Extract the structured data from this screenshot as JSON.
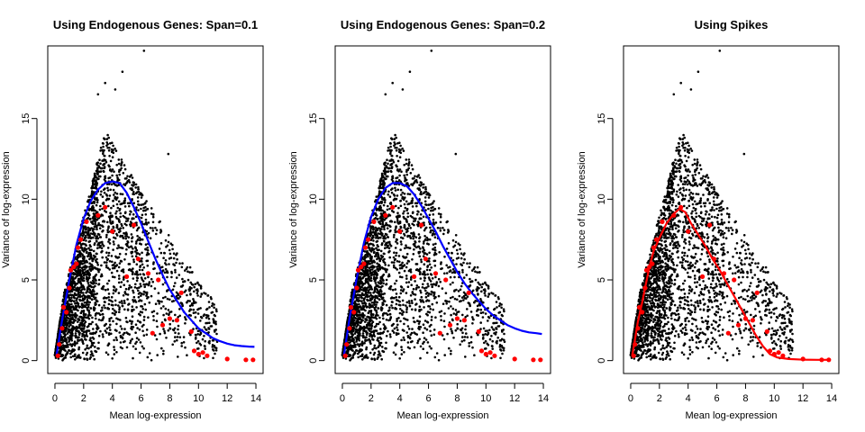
{
  "colors": {
    "points": "#000000",
    "spikes": "#ff0000",
    "fit_blue": "#0000ff",
    "fit_red": "#ff0000"
  },
  "chart_data": [
    {
      "type": "scatter",
      "title": "Using Endogenous Genes: Span=0.1",
      "xlabel": "Mean log-expression",
      "ylabel": "Variance of log-expression",
      "xlim": [
        -0.5,
        14.5
      ],
      "ylim": [
        -0.8,
        19.5
      ],
      "xticks": [
        0,
        2,
        4,
        6,
        8,
        10,
        12,
        14
      ],
      "yticks": [
        0,
        5,
        10,
        15
      ],
      "grid": false,
      "fit_color": "#0000ff",
      "fit": [
        [
          0.1,
          0.3
        ],
        [
          0.5,
          2.5
        ],
        [
          1.0,
          5.0
        ],
        [
          1.5,
          7.2
        ],
        [
          2.0,
          8.8
        ],
        [
          2.5,
          9.9
        ],
        [
          3.0,
          10.6
        ],
        [
          3.5,
          11.0
        ],
        [
          4.0,
          11.1
        ],
        [
          4.5,
          11.0
        ],
        [
          5.0,
          10.4
        ],
        [
          5.5,
          9.5
        ],
        [
          6.0,
          8.5
        ],
        [
          6.5,
          7.4
        ],
        [
          7.0,
          6.3
        ],
        [
          7.5,
          5.3
        ],
        [
          8.0,
          4.4
        ],
        [
          8.5,
          3.7
        ],
        [
          9.0,
          3.0
        ],
        [
          9.5,
          2.5
        ],
        [
          10.0,
          2.0
        ],
        [
          10.5,
          1.7
        ],
        [
          11.0,
          1.4
        ],
        [
          11.5,
          1.2
        ],
        [
          12.0,
          1.05
        ],
        [
          12.5,
          0.95
        ],
        [
          13.0,
          0.9
        ],
        [
          13.5,
          0.87
        ],
        [
          13.9,
          0.85
        ]
      ],
      "spikes": [
        [
          0.2,
          0.3
        ],
        [
          0.3,
          1.0
        ],
        [
          0.5,
          2.0
        ],
        [
          0.6,
          3.3
        ],
        [
          0.8,
          3.0
        ],
        [
          1.0,
          4.5
        ],
        [
          1.1,
          5.6
        ],
        [
          1.3,
          5.8
        ],
        [
          1.5,
          6.0
        ],
        [
          1.6,
          7.0
        ],
        [
          1.8,
          7.5
        ],
        [
          2.2,
          8.6
        ],
        [
          3.0,
          9.0
        ],
        [
          3.5,
          9.5
        ],
        [
          4.0,
          8.0
        ],
        [
          5.0,
          5.2
        ],
        [
          5.5,
          8.4
        ],
        [
          5.8,
          6.3
        ],
        [
          6.5,
          5.4
        ],
        [
          6.8,
          1.7
        ],
        [
          7.2,
          5.0
        ],
        [
          7.5,
          2.2
        ],
        [
          8.0,
          2.6
        ],
        [
          8.5,
          2.5
        ],
        [
          8.8,
          4.2
        ],
        [
          9.5,
          1.8
        ],
        [
          9.7,
          0.6
        ],
        [
          10.0,
          0.4
        ],
        [
          10.3,
          0.5
        ],
        [
          10.6,
          0.3
        ],
        [
          12.0,
          0.1
        ],
        [
          13.3,
          0.05
        ],
        [
          13.8,
          0.05
        ]
      ]
    },
    {
      "type": "scatter",
      "title": "Using Endogenous Genes: Span=0.2",
      "xlabel": "Mean log-expression",
      "ylabel": "Variance of log-expression",
      "xlim": [
        -0.5,
        14.5
      ],
      "ylim": [
        -0.8,
        19.5
      ],
      "xticks": [
        0,
        2,
        4,
        6,
        8,
        10,
        12,
        14
      ],
      "yticks": [
        0,
        5,
        10,
        15
      ],
      "grid": false,
      "fit_color": "#0000ff",
      "fit": [
        [
          0.1,
          0.3
        ],
        [
          0.5,
          2.6
        ],
        [
          1.0,
          5.1
        ],
        [
          1.5,
          7.3
        ],
        [
          2.0,
          8.9
        ],
        [
          2.5,
          10.0
        ],
        [
          3.0,
          10.7
        ],
        [
          3.5,
          11.0
        ],
        [
          4.0,
          11.0
        ],
        [
          4.5,
          10.8
        ],
        [
          5.0,
          10.3
        ],
        [
          5.5,
          9.6
        ],
        [
          6.0,
          8.8
        ],
        [
          6.5,
          8.0
        ],
        [
          7.0,
          7.1
        ],
        [
          7.5,
          6.3
        ],
        [
          8.0,
          5.5
        ],
        [
          8.5,
          4.8
        ],
        [
          9.0,
          4.2
        ],
        [
          9.5,
          3.7
        ],
        [
          10.0,
          3.2
        ],
        [
          10.5,
          2.8
        ],
        [
          11.0,
          2.5
        ],
        [
          11.5,
          2.2
        ],
        [
          12.0,
          2.0
        ],
        [
          12.5,
          1.85
        ],
        [
          13.0,
          1.75
        ],
        [
          13.5,
          1.7
        ],
        [
          13.9,
          1.65
        ]
      ],
      "spikes": [
        [
          0.2,
          0.3
        ],
        [
          0.3,
          1.0
        ],
        [
          0.5,
          2.0
        ],
        [
          0.6,
          3.3
        ],
        [
          0.8,
          3.0
        ],
        [
          1.0,
          4.5
        ],
        [
          1.1,
          5.6
        ],
        [
          1.3,
          5.8
        ],
        [
          1.5,
          6.0
        ],
        [
          1.6,
          7.0
        ],
        [
          1.8,
          7.5
        ],
        [
          2.2,
          8.6
        ],
        [
          3.0,
          9.0
        ],
        [
          3.5,
          9.5
        ],
        [
          4.0,
          8.0
        ],
        [
          5.0,
          5.2
        ],
        [
          5.5,
          8.4
        ],
        [
          5.8,
          6.3
        ],
        [
          6.5,
          5.4
        ],
        [
          6.8,
          1.7
        ],
        [
          7.2,
          5.0
        ],
        [
          7.5,
          2.2
        ],
        [
          8.0,
          2.6
        ],
        [
          8.5,
          2.5
        ],
        [
          8.8,
          4.2
        ],
        [
          9.5,
          1.8
        ],
        [
          9.7,
          0.6
        ],
        [
          10.0,
          0.4
        ],
        [
          10.3,
          0.5
        ],
        [
          10.6,
          0.3
        ],
        [
          12.0,
          0.1
        ],
        [
          13.3,
          0.05
        ],
        [
          13.8,
          0.05
        ]
      ]
    },
    {
      "type": "scatter",
      "title": "Using Spikes",
      "xlabel": "Mean log-expression",
      "ylabel": "Variance of log-expression",
      "xlim": [
        -0.5,
        14.5
      ],
      "ylim": [
        -0.8,
        19.5
      ],
      "xticks": [
        0,
        2,
        4,
        6,
        8,
        10,
        12,
        14
      ],
      "yticks": [
        0,
        5,
        10,
        15
      ],
      "grid": false,
      "fit_color": "#ff0000",
      "fit": [
        [
          0.1,
          0.3
        ],
        [
          0.3,
          1.3
        ],
        [
          0.5,
          2.4
        ],
        [
          0.8,
          3.6
        ],
        [
          1.0,
          4.5
        ],
        [
          1.3,
          5.8
        ],
        [
          1.6,
          6.8
        ],
        [
          2.0,
          7.6
        ],
        [
          2.5,
          8.5
        ],
        [
          3.0,
          9.1
        ],
        [
          3.4,
          9.4
        ],
        [
          3.8,
          9.2
        ],
        [
          4.2,
          8.5
        ],
        [
          4.7,
          7.8
        ],
        [
          5.2,
          7.1
        ],
        [
          5.7,
          6.3
        ],
        [
          6.2,
          5.6
        ],
        [
          6.7,
          4.8
        ],
        [
          7.2,
          4.0
        ],
        [
          7.7,
          3.2
        ],
        [
          8.2,
          2.4
        ],
        [
          8.7,
          1.6
        ],
        [
          9.2,
          0.9
        ],
        [
          9.7,
          0.4
        ],
        [
          10.2,
          0.2
        ],
        [
          11.0,
          0.1
        ],
        [
          12.0,
          0.06
        ],
        [
          13.0,
          0.05
        ],
        [
          13.9,
          0.05
        ]
      ],
      "spikes": [
        [
          0.2,
          0.3
        ],
        [
          0.3,
          1.0
        ],
        [
          0.5,
          2.0
        ],
        [
          0.6,
          3.3
        ],
        [
          0.8,
          3.0
        ],
        [
          1.0,
          4.5
        ],
        [
          1.1,
          5.6
        ],
        [
          1.3,
          5.8
        ],
        [
          1.5,
          6.0
        ],
        [
          1.6,
          7.0
        ],
        [
          1.8,
          7.5
        ],
        [
          2.2,
          8.6
        ],
        [
          3.0,
          9.0
        ],
        [
          3.5,
          9.5
        ],
        [
          4.0,
          8.0
        ],
        [
          5.0,
          5.2
        ],
        [
          5.5,
          8.4
        ],
        [
          5.8,
          6.3
        ],
        [
          6.5,
          5.4
        ],
        [
          6.8,
          1.7
        ],
        [
          7.2,
          5.0
        ],
        [
          7.5,
          2.2
        ],
        [
          8.0,
          2.6
        ],
        [
          8.5,
          2.5
        ],
        [
          8.8,
          4.2
        ],
        [
          9.5,
          1.8
        ],
        [
          9.7,
          0.6
        ],
        [
          10.0,
          0.4
        ],
        [
          10.3,
          0.5
        ],
        [
          10.6,
          0.3
        ],
        [
          12.0,
          0.1
        ],
        [
          13.3,
          0.05
        ],
        [
          13.8,
          0.05
        ]
      ]
    }
  ]
}
